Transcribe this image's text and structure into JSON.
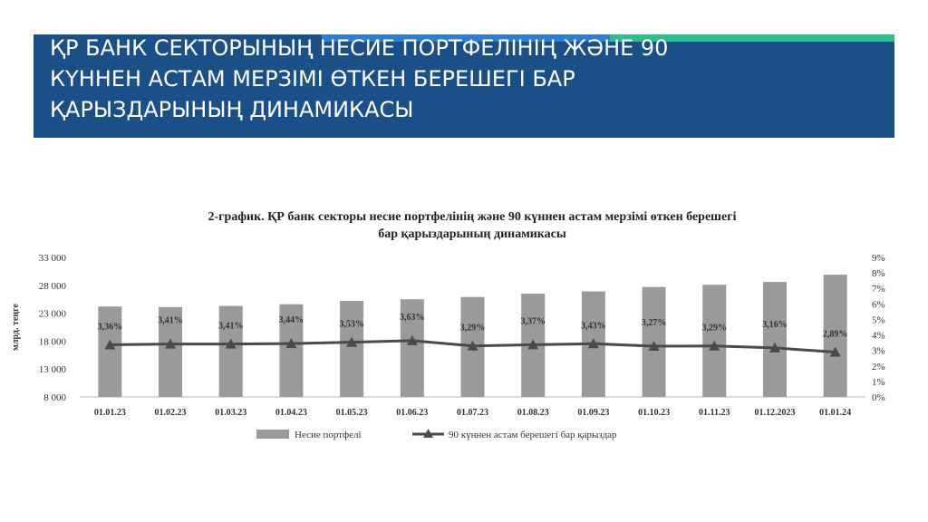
{
  "slide": {
    "title": "ҚР БАНК СЕКТОРЫНЫҢ НЕСИЕ ПОРТФЕЛІНІҢ ЖӘНЕ 90\nКҮННЕН АСТАМ МЕРЗІМІ ӨТКЕН БЕРЕШЕГІ БАР\nҚАРЫЗДАРЫНЫҢ ДИНАМИКАСЫ",
    "title_bg": "#1b4f88",
    "accent_colors": [
      "#1b4f88",
      "#2e7fd0",
      "#2bbf8f"
    ]
  },
  "chart_data": {
    "type": "bar",
    "title": "2-график. ҚР банк секторы несие портфелінің және 90 күннен астам мерзімі өткен берешегі бар қарыздарының динамикасы",
    "categories": [
      "01.01.23",
      "01.02.23",
      "01.03.23",
      "01.04.23",
      "01.05.23",
      "01.06.23",
      "01.07.23",
      "01.08.23",
      "01.09.23",
      "01.10.23",
      "01.11.23",
      "01.12.2023",
      "01.01.24"
    ],
    "ylabel": "млрд. теңге",
    "ylim": [
      8000,
      33000
    ],
    "y_ticks": [
      "8 000",
      "13 000",
      "18 000",
      "23 000",
      "28 000",
      "33 000"
    ],
    "y2lim": [
      0,
      9
    ],
    "y2_ticks": [
      "0%",
      "1%",
      "2%",
      "3%",
      "4%",
      "5%",
      "6%",
      "7%",
      "8%",
      "9%"
    ],
    "legend_position": "bottom",
    "series": [
      {
        "name": "Несие портфелі",
        "type": "bar",
        "axis": "left",
        "color": "#9a9a9a",
        "values": [
          24200,
          24100,
          24300,
          24600,
          25200,
          25500,
          25900,
          26500,
          26900,
          27700,
          28100,
          28600,
          29900
        ]
      },
      {
        "name": "90 күннен астам берешегі бар қарыздар",
        "type": "line",
        "axis": "right",
        "color": "#4a4a4a",
        "values": [
          3.36,
          3.41,
          3.41,
          3.44,
          3.53,
          3.63,
          3.29,
          3.37,
          3.43,
          3.27,
          3.29,
          3.16,
          2.89
        ],
        "labels": [
          "3,36%",
          "3,41%",
          "3,41%",
          "3,44%",
          "3,53%",
          "3,63%",
          "3,29%",
          "3,37%",
          "3,43%",
          "3,27%",
          "3,29%",
          "3,16%",
          "2,89%"
        ]
      }
    ]
  }
}
